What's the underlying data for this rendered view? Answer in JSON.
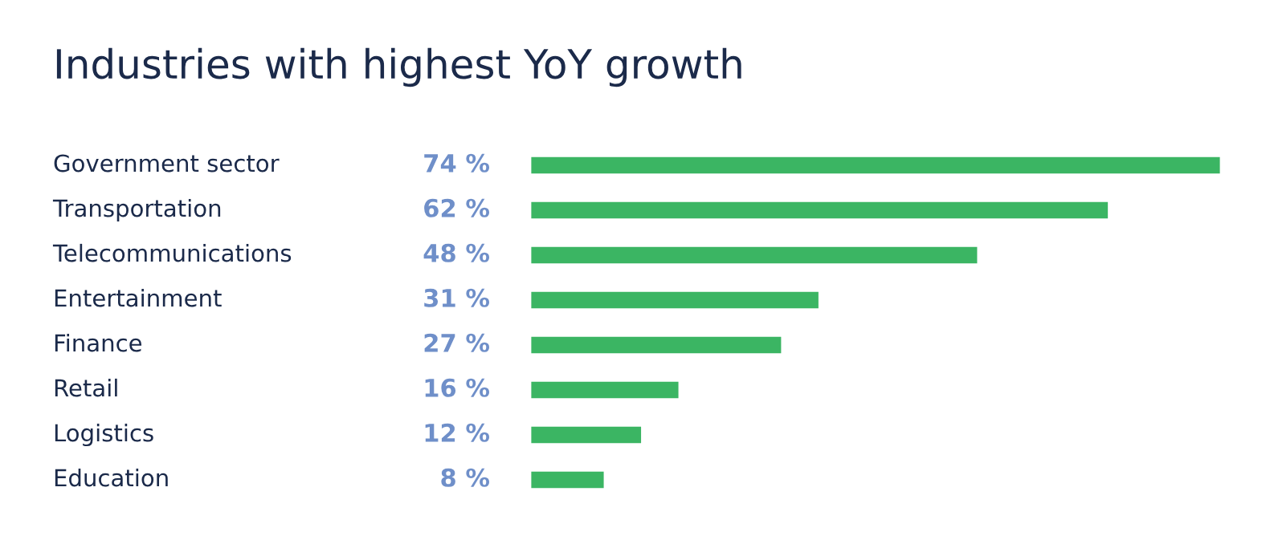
{
  "chart_data": {
    "type": "bar",
    "orientation": "horizontal",
    "title": "Industries with highest YoY growth",
    "categories": [
      "Government sector",
      "Transportation",
      "Telecommunications",
      "Entertainment",
      "Finance",
      "Retail",
      "Logistics",
      "Education"
    ],
    "values": [
      74,
      62,
      48,
      31,
      27,
      16,
      12,
      8
    ],
    "value_labels": [
      "74 %",
      "62 %",
      "48 %",
      "31 %",
      "27 %",
      "16 %",
      "12 %",
      "8 %"
    ],
    "color": "#3bb563",
    "tick_labels": false
  }
}
